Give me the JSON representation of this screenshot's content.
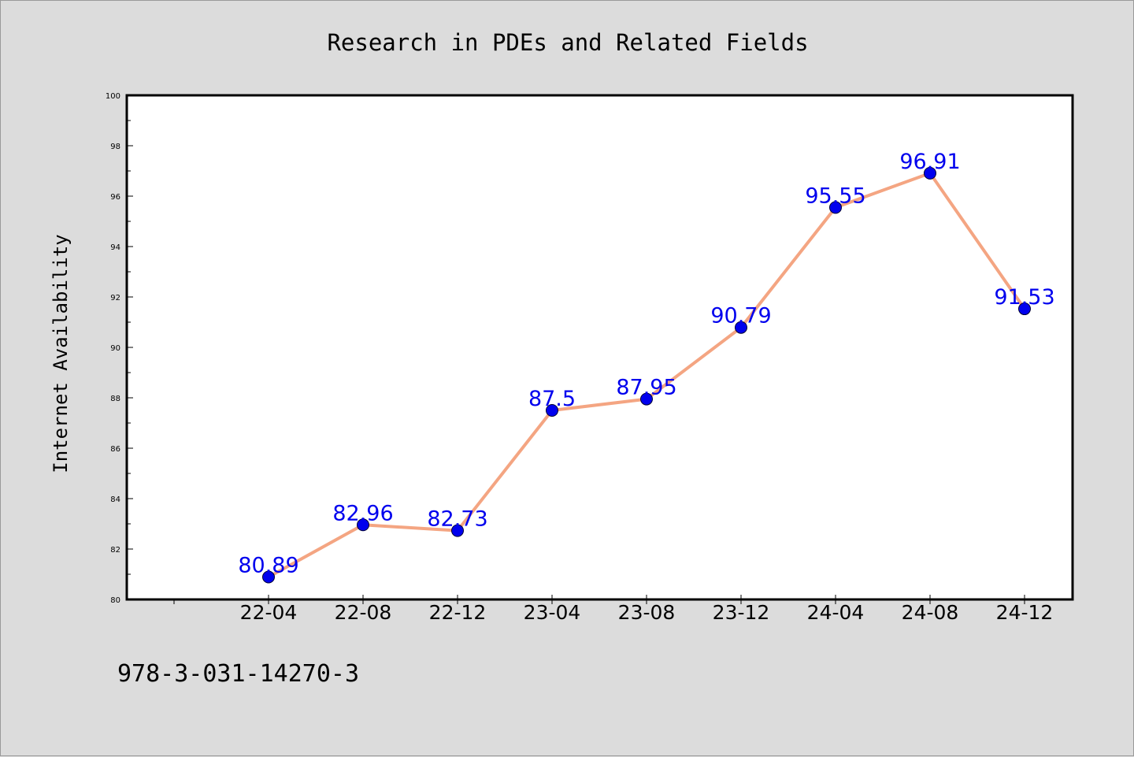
{
  "chart_data": {
    "type": "line",
    "title": "Research in PDEs and Related Fields",
    "xlabel": "",
    "ylabel": "Internet Availability",
    "categories": [
      "22-04",
      "22-08",
      "22-12",
      "23-04",
      "23-08",
      "23-12",
      "24-04",
      "24-08",
      "24-12"
    ],
    "series": [
      {
        "values": [
          80.89,
          82.96,
          82.73,
          87.5,
          87.95,
          90.79,
          95.55,
          96.91,
          91.53
        ],
        "data_labels": [
          "80.89",
          "82.96",
          "82.73",
          "87.5",
          "87.95",
          "90.79",
          "95.55",
          "96.91",
          "91.53"
        ],
        "line_color": "#f4a582",
        "marker_color": "#0000ee",
        "label_color": "#0000ee"
      }
    ],
    "ylim": [
      80,
      100
    ],
    "yticks": [
      80,
      82,
      84,
      86,
      88,
      90,
      92,
      94,
      96,
      98,
      100
    ],
    "ytick_labels": [
      "80",
      "82",
      "84",
      "86",
      "88",
      "90",
      "92",
      "94",
      "96",
      "98",
      "100"
    ],
    "grid": false,
    "legend": "none"
  },
  "footer": {
    "isbn": "978-3-031-14270-3"
  },
  "colors": {
    "background": "#dcdcdc",
    "plot_background": "#ffffff",
    "axes": "#000000"
  }
}
